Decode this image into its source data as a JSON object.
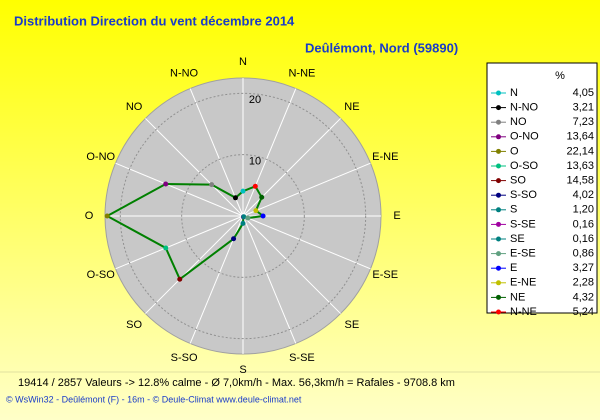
{
  "chart_data": {
    "type": "polar",
    "title": "Distribution Direction du vent   décembre 2014",
    "subtitle": "Deûlémont, Nord (59890)",
    "legend_title": "%",
    "line_color": "#008000",
    "categories": [
      "N",
      "N-NO",
      "NO",
      "O-NO",
      "O",
      "O-SO",
      "SO",
      "S-SO",
      "S",
      "S-SE",
      "SE",
      "E-SE",
      "E",
      "E-NE",
      "NE",
      "N-NE"
    ],
    "values": [
      4.05,
      3.21,
      7.23,
      13.64,
      22.14,
      13.63,
      14.58,
      4.02,
      1.2,
      0.16,
      0.16,
      0.86,
      3.27,
      2.28,
      4.32,
      5.24
    ],
    "value_labels": [
      "4,05",
      "3,21",
      "7,23",
      "13,64",
      "22,14",
      "13,63",
      "14,58",
      "4,02",
      "1,20",
      "0,16",
      "0,16",
      "0,86",
      "3,27",
      "2,28",
      "4,32",
      "5,24"
    ],
    "colors": [
      "#00c0c0",
      "#000000",
      "#808080",
      "#800080",
      "#808000",
      "#00c080",
      "#800000",
      "#000080",
      "#008080",
      "#a000a0",
      "#008080",
      "#60a080",
      "#0000ff",
      "#c0c000",
      "#006000",
      "#ff0000"
    ],
    "rlim": [
      0,
      22.5
    ],
    "rticks": [
      10,
      20
    ],
    "footer": "19414 / 2857 Valeurs  -> 12.8% calme   -   Ø 7,0km/h  -  Max. 56,3km/h = Rafales   -   9708.8 km",
    "credits": "© WsWin32  -  Deûlémont (F) - 16m  -  © Deule-Climat www.deule-climat.net"
  }
}
